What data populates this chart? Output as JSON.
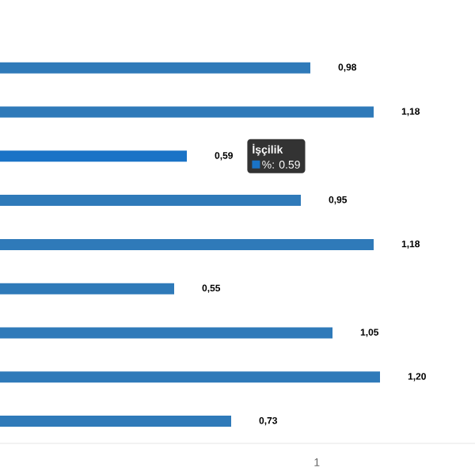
{
  "chart_data": {
    "type": "bar",
    "orientation": "horizontal",
    "categories": [
      null,
      null,
      null,
      null,
      null,
      null,
      null,
      null,
      null
    ],
    "values": [
      0.98,
      1.18,
      0.59,
      0.95,
      1.18,
      0.55,
      1.05,
      1.2,
      0.73
    ],
    "colors": [
      "#2f7ab9",
      "#2f7ab9",
      "#1a73c6",
      "#2f7ab9",
      "#2f7ab9",
      "#2f7ab9",
      "#2f7ab9",
      "#2f7ab9",
      "#2f7ab9"
    ],
    "value_labels": [
      "0,98",
      "1,18",
      "0,59",
      "0,95",
      "1,18",
      "0,55",
      "1,05",
      "1,20",
      "0,73"
    ],
    "annotations": [
      "İşçilik",
      "%: 0.59",
      "1"
    ]
  }
}
